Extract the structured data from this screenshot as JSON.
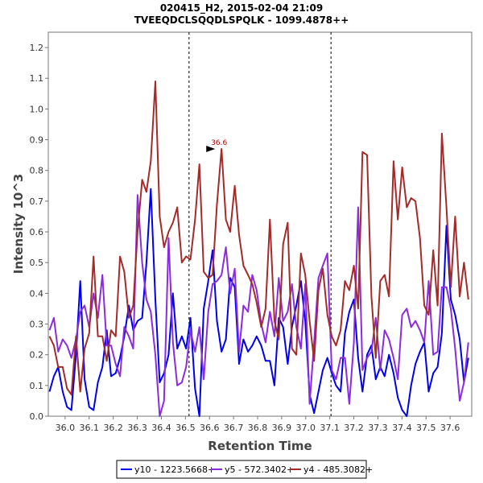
{
  "chart_data": {
    "type": "line",
    "title": "020415_H2, 2015-02-04 21:09",
    "subtitle": "TVEEQDCLSQQDLSPQLK - 1099.4878++",
    "xlabel": "Retention Time",
    "ylabel": "Intensity 10^3",
    "xlim": [
      35.93,
      37.69
    ],
    "ylim": [
      0,
      1.25
    ],
    "x_ticks": [
      "36.0",
      "36.1",
      "36.2",
      "36.3",
      "36.4",
      "36.5",
      "36.6",
      "36.7",
      "36.8",
      "36.9",
      "37.0",
      "37.1",
      "37.2",
      "37.3",
      "37.4",
      "37.5",
      "37.6"
    ],
    "y_ticks": [
      "0.0",
      "0.1",
      "0.2",
      "0.3",
      "0.4",
      "0.5",
      "0.6",
      "0.7",
      "0.8",
      "0.9",
      "1.0",
      "1.1",
      "1.2"
    ],
    "grid": false,
    "legend_position": "bottom",
    "boundaries": [
      36.515,
      37.105
    ],
    "annotation": {
      "text": "36.6",
      "x": 36.63,
      "y": 0.87,
      "color": "#aa0000"
    },
    "x": [
      35.935,
      35.953,
      35.971,
      35.99,
      36.008,
      36.026,
      36.045,
      36.063,
      36.081,
      36.1,
      36.118,
      36.136,
      36.155,
      36.173,
      36.191,
      36.21,
      36.228,
      36.246,
      36.265,
      36.283,
      36.301,
      36.32,
      36.338,
      36.356,
      36.375,
      36.393,
      36.411,
      36.43,
      36.448,
      36.466,
      36.485,
      36.503,
      36.521,
      36.54,
      36.558,
      36.576,
      36.595,
      36.613,
      36.631,
      36.65,
      36.668,
      36.686,
      36.705,
      36.723,
      36.741,
      36.76,
      36.778,
      36.796,
      36.815,
      36.833,
      36.851,
      36.87,
      36.888,
      36.906,
      36.925,
      36.943,
      36.961,
      36.98,
      36.998,
      37.016,
      37.035,
      37.053,
      37.071,
      37.09,
      37.108,
      37.126,
      37.145,
      37.163,
      37.181,
      37.2,
      37.218,
      37.236,
      37.255,
      37.273,
      37.291,
      37.31,
      37.328,
      37.346,
      37.365,
      37.383,
      37.401,
      37.42,
      37.438,
      37.456,
      37.475,
      37.493,
      37.511,
      37.53,
      37.548,
      37.566,
      37.585,
      37.603,
      37.621,
      37.64,
      37.658,
      37.676
    ],
    "series": [
      {
        "name": "y10 - 1223.5668+",
        "color": "#0000ee",
        "values": [
          0.08,
          0.13,
          0.16,
          0.08,
          0.03,
          0.02,
          0.2,
          0.44,
          0.12,
          0.03,
          0.02,
          0.11,
          0.16,
          0.28,
          0.13,
          0.14,
          0.19,
          0.26,
          0.36,
          0.28,
          0.31,
          0.32,
          0.5,
          0.74,
          0.38,
          0.11,
          0.14,
          0.2,
          0.4,
          0.22,
          0.26,
          0.22,
          0.32,
          0.09,
          0.0,
          0.35,
          0.44,
          0.54,
          0.31,
          0.21,
          0.25,
          0.45,
          0.42,
          0.17,
          0.25,
          0.21,
          0.23,
          0.26,
          0.23,
          0.18,
          0.18,
          0.1,
          0.32,
          0.29,
          0.17,
          0.29,
          0.36,
          0.44,
          0.31,
          0.07,
          0.01,
          0.08,
          0.15,
          0.19,
          0.14,
          0.1,
          0.08,
          0.27,
          0.34,
          0.38,
          0.19,
          0.08,
          0.2,
          0.23,
          0.12,
          0.16,
          0.13,
          0.2,
          0.14,
          0.06,
          0.02,
          0.0,
          0.1,
          0.17,
          0.21,
          0.24,
          0.08,
          0.14,
          0.16,
          0.27,
          0.62,
          0.38,
          0.33,
          0.25,
          0.11,
          0.19
        ]
      },
      {
        "name": "y5 - 572.3402+",
        "color": "#8a2be2",
        "values": [
          0.28,
          0.32,
          0.21,
          0.25,
          0.23,
          0.19,
          0.25,
          0.34,
          0.36,
          0.29,
          0.4,
          0.32,
          0.46,
          0.23,
          0.23,
          0.17,
          0.13,
          0.29,
          0.26,
          0.22,
          0.72,
          0.5,
          0.38,
          0.34,
          0.2,
          0.0,
          0.05,
          0.58,
          0.24,
          0.1,
          0.11,
          0.16,
          0.28,
          0.21,
          0.29,
          0.12,
          0.34,
          0.43,
          0.44,
          0.46,
          0.55,
          0.4,
          0.48,
          0.21,
          0.36,
          0.34,
          0.46,
          0.41,
          0.3,
          0.24,
          0.34,
          0.26,
          0.45,
          0.31,
          0.34,
          0.43,
          0.29,
          0.22,
          0.43,
          0.04,
          0.24,
          0.45,
          0.49,
          0.53,
          0.15,
          0.12,
          0.19,
          0.19,
          0.04,
          0.24,
          0.68,
          0.15,
          0.19,
          0.21,
          0.32,
          0.15,
          0.28,
          0.25,
          0.19,
          0.12,
          0.33,
          0.35,
          0.29,
          0.31,
          0.28,
          0.24,
          0.44,
          0.2,
          0.21,
          0.42,
          0.42,
          0.35,
          0.22,
          0.05,
          0.11,
          0.24
        ]
      },
      {
        "name": "y4 - 485.3082+",
        "color": "#a52a2a",
        "values": [
          0.26,
          0.23,
          0.16,
          0.16,
          0.09,
          0.07,
          0.26,
          0.08,
          0.22,
          0.27,
          0.52,
          0.26,
          0.26,
          0.18,
          0.28,
          0.26,
          0.52,
          0.47,
          0.32,
          0.36,
          0.6,
          0.77,
          0.73,
          0.83,
          1.09,
          0.65,
          0.55,
          0.6,
          0.63,
          0.68,
          0.5,
          0.52,
          0.51,
          0.64,
          0.82,
          0.47,
          0.45,
          0.46,
          0.69,
          0.87,
          0.64,
          0.6,
          0.75,
          0.59,
          0.49,
          0.46,
          0.43,
          0.37,
          0.29,
          0.35,
          0.64,
          0.31,
          0.25,
          0.56,
          0.63,
          0.22,
          0.2,
          0.53,
          0.46,
          0.31,
          0.18,
          0.41,
          0.48,
          0.33,
          0.26,
          0.23,
          0.28,
          0.44,
          0.41,
          0.49,
          0.35,
          0.86,
          0.85,
          0.39,
          0.19,
          0.44,
          0.46,
          0.39,
          0.83,
          0.64,
          0.81,
          0.68,
          0.71,
          0.7,
          0.58,
          0.36,
          0.33,
          0.54,
          0.36,
          0.92,
          0.68,
          0.42,
          0.65,
          0.39,
          0.5,
          0.38
        ]
      }
    ]
  }
}
